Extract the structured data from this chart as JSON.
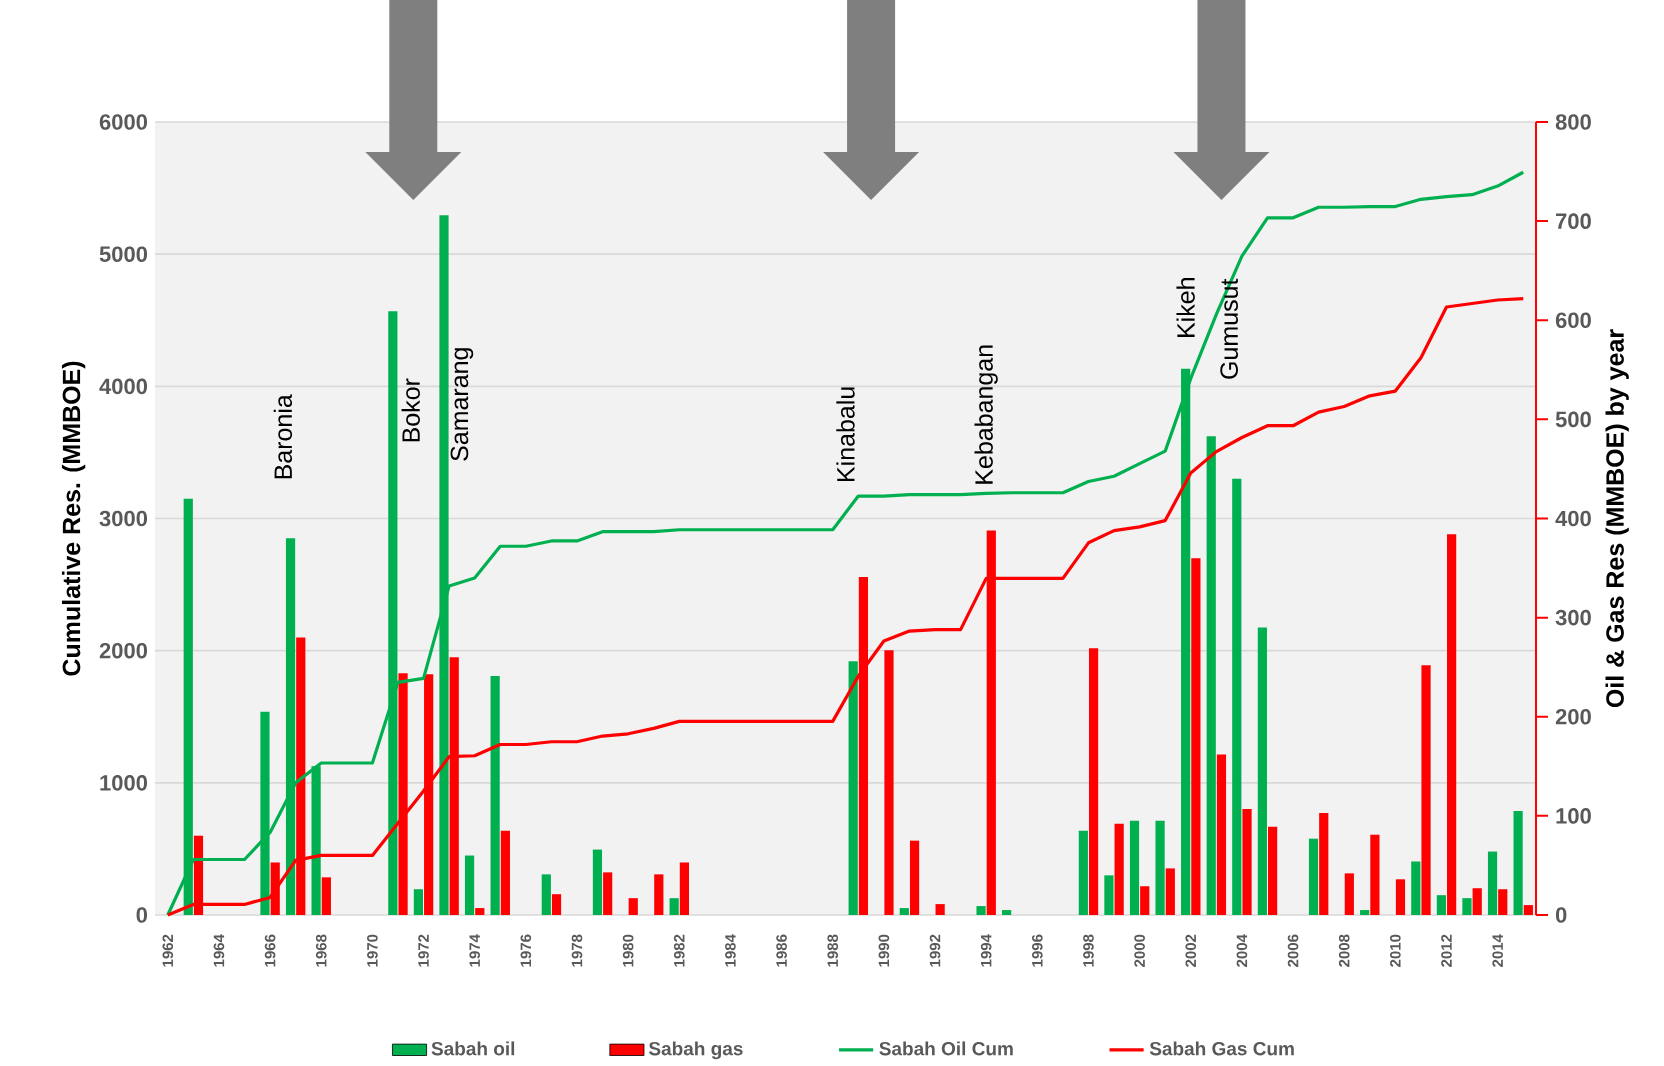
{
  "chart_data": {
    "type": "bar",
    "x": [
      1962,
      1963,
      1964,
      1965,
      1966,
      1967,
      1968,
      1969,
      1970,
      1971,
      1972,
      1973,
      1974,
      1975,
      1976,
      1977,
      1978,
      1979,
      1980,
      1981,
      1982,
      1983,
      1984,
      1985,
      1986,
      1987,
      1988,
      1989,
      1990,
      1991,
      1992,
      1993,
      1994,
      1995,
      1996,
      1997,
      1998,
      1999,
      2000,
      2001,
      2002,
      2003,
      2004,
      2005,
      2006,
      2007,
      2008,
      2009,
      2010,
      2011,
      2012,
      2013,
      2014,
      2015
    ],
    "xlim": [
      1961.5,
      2015.5
    ],
    "xticks": [
      1962,
      1964,
      1966,
      1968,
      1970,
      1972,
      1974,
      1976,
      1978,
      1980,
      1982,
      1984,
      1986,
      1988,
      1990,
      1992,
      1994,
      1996,
      1998,
      2000,
      2002,
      2004,
      2006,
      2008,
      2010,
      2012,
      2014
    ],
    "ylim": [
      0,
      6000
    ],
    "yticks": [
      0,
      1000,
      2000,
      3000,
      4000,
      5000,
      6000
    ],
    "y2lim": [
      0,
      800
    ],
    "y2ticks": [
      0,
      100,
      200,
      300,
      400,
      500,
      600,
      700,
      800
    ],
    "ylabel": "Cumulative Res. (MMBOE)",
    "y2label": "Oil & Gas Res (MMBOE) by year",
    "grid": "y",
    "legend": "bottom",
    "series": [
      {
        "name": "Sabah oil",
        "axis": "y2",
        "color": "#00b050",
        "values": [
          null,
          420,
          null,
          null,
          205,
          380,
          150,
          null,
          null,
          609,
          26,
          706,
          60,
          241,
          null,
          41,
          null,
          66,
          null,
          null,
          17,
          null,
          null,
          null,
          null,
          null,
          null,
          256,
          null,
          7,
          null,
          null,
          9,
          5,
          null,
          null,
          85,
          40,
          95,
          95,
          551,
          483,
          440,
          290,
          null,
          77,
          null,
          5,
          null,
          54,
          20,
          17,
          64,
          105
        ]
      },
      {
        "name": "Sabah gas",
        "axis": "y2",
        "color": "#ff0000",
        "values": [
          null,
          80,
          null,
          null,
          53,
          280,
          38,
          null,
          null,
          244,
          243,
          260,
          7,
          85,
          null,
          21,
          null,
          43,
          17,
          41,
          53,
          null,
          null,
          null,
          null,
          null,
          null,
          341,
          267,
          75,
          11,
          null,
          388,
          null,
          null,
          null,
          269,
          92,
          29,
          47,
          360,
          162,
          107,
          89,
          null,
          103,
          42,
          81,
          36,
          252,
          384,
          27,
          26,
          10
        ]
      },
      {
        "name": "Sabah Oil Cum",
        "type": "line",
        "color": "#00b050",
        "values": [
          0,
          420,
          420,
          420,
          625,
          1000,
          1150,
          1150,
          1150,
          1760,
          1790,
          2490,
          2550,
          2790,
          2790,
          2830,
          2830,
          2900,
          2900,
          2900,
          2915,
          2915,
          2915,
          2915,
          2915,
          2915,
          2915,
          3170,
          3170,
          3180,
          3180,
          3180,
          3190,
          3195,
          3195,
          3195,
          3280,
          3320,
          3415,
          3510,
          4060,
          4545,
          4985,
          5275,
          5275,
          5355,
          5355,
          5360,
          5360,
          5415,
          5435,
          5450,
          5515,
          5620
        ]
      },
      {
        "name": "Sabah Gas Cum",
        "type": "line",
        "color": "#ff0000",
        "values": [
          0,
          80,
          80,
          80,
          133,
          413,
          451,
          451,
          451,
          695,
          938,
          1198,
          1205,
          1290,
          1290,
          1311,
          1311,
          1354,
          1371,
          1412,
          1465,
          1465,
          1465,
          1465,
          1465,
          1465,
          1465,
          1806,
          2073,
          2148,
          2159,
          2159,
          2547,
          2547,
          2547,
          2547,
          2816,
          2908,
          2937,
          2984,
          3344,
          3506,
          3613,
          3702,
          3702,
          3805,
          3847,
          3928,
          3964,
          4216,
          4600,
          4627,
          4653,
          4663
        ]
      }
    ],
    "annotations": [
      "Baronia",
      "Bokor",
      "Samarang",
      "Kinabalu",
      "Kebabangan",
      "Kikeh",
      "Gumusut"
    ]
  }
}
